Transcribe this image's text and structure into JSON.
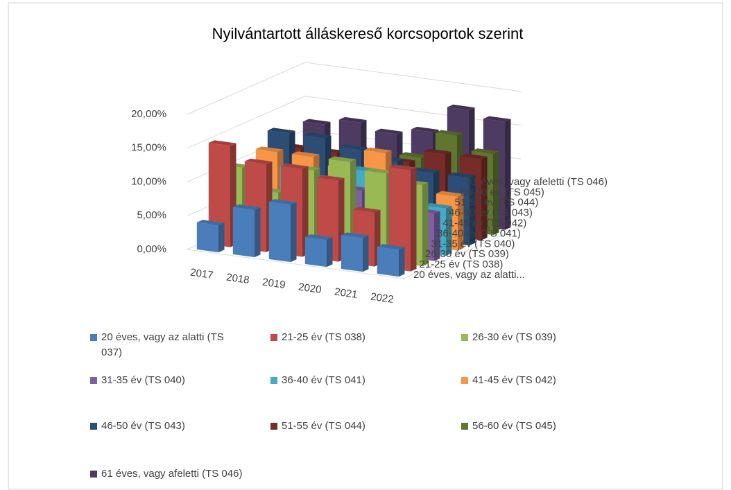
{
  "chart_data": {
    "type": "bar3d",
    "title": "Nyilvántartott álláskereső korcsoportok szerint",
    "categories": [
      "2017",
      "2018",
      "2019",
      "2020",
      "2021",
      "2022"
    ],
    "ylim": [
      0,
      20
    ],
    "yticks": [
      {
        "value": 0,
        "label": "0,00%"
      },
      {
        "value": 5,
        "label": "5,00%"
      },
      {
        "value": 10,
        "label": "10,00%"
      },
      {
        "value": 15,
        "label": "15,00%"
      },
      {
        "value": 20,
        "label": "20,00%"
      }
    ],
    "depth_labels": [
      "20 éves, vagy az alatti...",
      "21-25 év (TS 038)",
      "26-30 év (TS 039)",
      "31-35 év (TS 040)",
      "36-40 év (TS 041)",
      "41-45 év (TS 042)",
      "46-50 év (TS 043)",
      "51-55 év (TS 044)",
      "56-60 év (TS 045)",
      "61 éves, vagy afeletti (TS 046)"
    ],
    "series": [
      {
        "name": "20 éves, vagy az alatti (TS 037)",
        "color": "#4a7ebb",
        "values": [
          4,
          7,
          8.5,
          4,
          5,
          4
        ]
      },
      {
        "name": "21-25 év (TS 038)",
        "color": "#be4b48",
        "values": [
          15,
          13,
          13,
          12,
          8,
          15
        ]
      },
      {
        "name": "26-30 év (TS 039)",
        "color": "#98b954",
        "values": [
          11,
          8,
          12,
          14,
          13,
          12
        ]
      },
      {
        "name": "31-35 év (TS 040)",
        "color": "#7d60a0",
        "values": [
          6,
          7,
          8,
          9,
          8,
          7
        ]
      },
      {
        "name": "36-40 év (TS 041)",
        "color": "#46aac5",
        "values": [
          9,
          10,
          9,
          11,
          8,
          7
        ]
      },
      {
        "name": "41-45 év (TS 042)",
        "color": "#f79646",
        "values": [
          11,
          11,
          10,
          13,
          8,
          8
        ]
      },
      {
        "name": "46-50 év (TS 043)",
        "color": "#2c4d75",
        "values": [
          13,
          13,
          12,
          11,
          10,
          10
        ]
      },
      {
        "name": "51-55 év (TS 044)",
        "color": "#772c2a",
        "values": [
          10,
          10,
          10,
          10,
          12,
          12
        ]
      },
      {
        "name": "56-60 év (TS 045)",
        "color": "#5f7530",
        "values": [
          9,
          9,
          9,
          10,
          14,
          12
        ]
      },
      {
        "name": "61 éves, vagy afeletti (TS 046)",
        "color": "#4d3b62",
        "values": [
          12,
          13,
          12,
          13,
          17,
          16
        ]
      }
    ],
    "grid": true
  }
}
